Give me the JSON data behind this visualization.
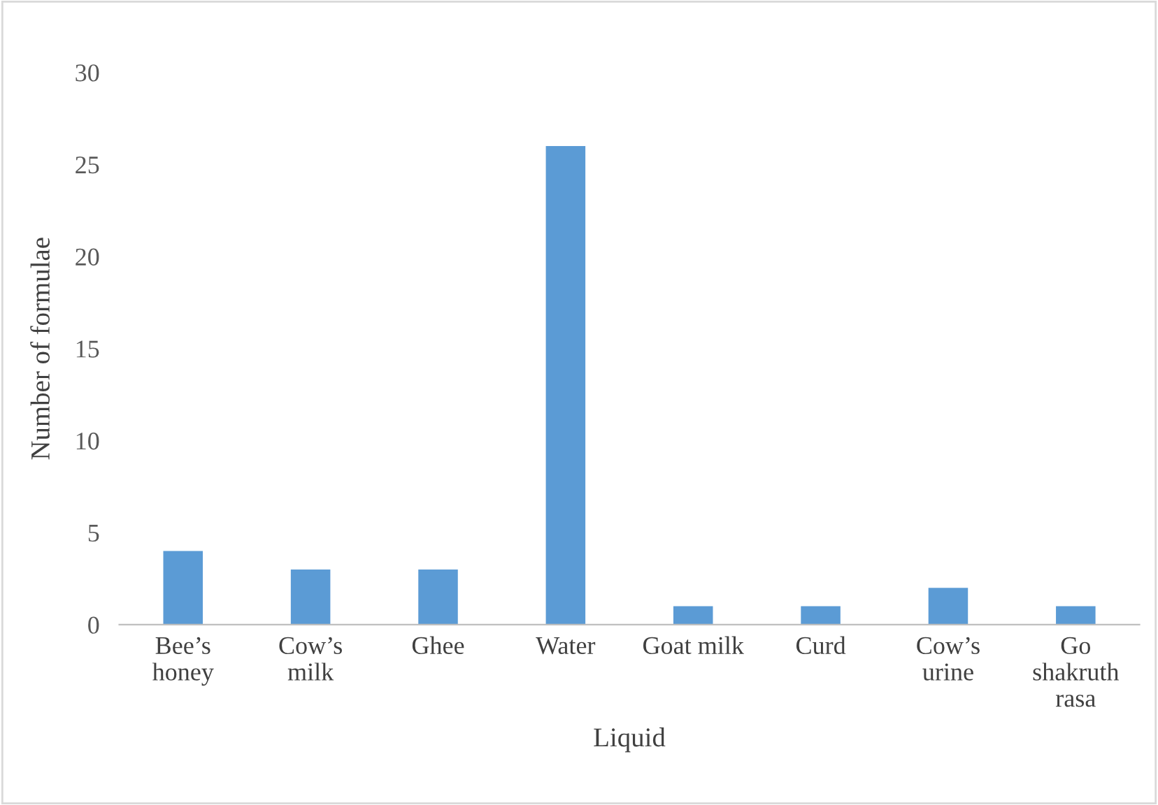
{
  "chart_data": {
    "type": "bar",
    "xlabel": "Liquid",
    "ylabel": "Number of formulae",
    "categories": [
      "Bee’s\nhoney",
      "Cow’s\nmilk",
      "Ghee",
      "Water",
      "Goat milk",
      "Curd",
      "Cow’s\nurine",
      "Go\nshakruth\nrasa"
    ],
    "values": [
      4,
      3,
      3,
      26,
      1,
      1,
      2,
      1
    ],
    "color": "#5b9bd5",
    "ylim": [
      0,
      30
    ],
    "yticks": [
      0,
      5,
      10,
      15,
      20,
      25,
      30
    ],
    "grid": false
  }
}
